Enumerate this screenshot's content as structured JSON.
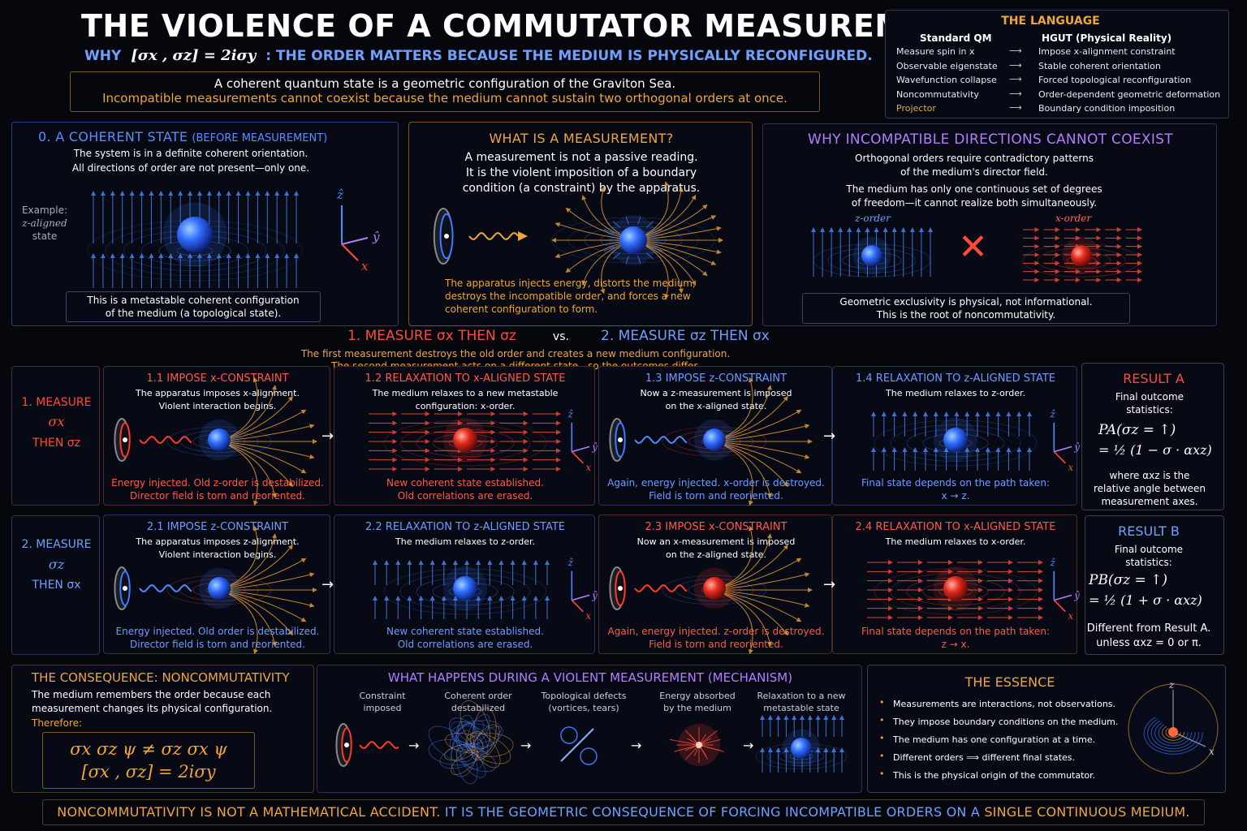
{
  "title": "THE VIOLENCE OF A COMMUTATOR MEASUREMENT",
  "subtitle": {
    "prefix": "WHY",
    "formula": "[σx , σz] = 2iσy",
    "text": ": THE ORDER MATTERS BECAUSE THE MEDIUM IS PHYSICALLY RECONFIGURED."
  },
  "intro": {
    "line1": "A coherent quantum state is a geometric configuration of the Graviton Sea.",
    "line2": "Incompatible measurements cannot coexist because the medium cannot sustain two orthogonal orders at once."
  },
  "language": {
    "title": "THE LANGUAGE",
    "col1": "Standard QM",
    "col2": "HGUT (Physical Reality)",
    "rows": [
      {
        "a": "Measure spin in x",
        "b": "Impose x-alignment constraint"
      },
      {
        "a": "Observable eigenstate",
        "b": "Stable coherent orientation"
      },
      {
        "a": "Wavefunction collapse",
        "b": "Forced topological reconfiguration"
      },
      {
        "a": "Noncommutativity",
        "b": "Order-dependent geometric deformation"
      },
      {
        "a": "Projector",
        "b": "Boundary condition imposition"
      }
    ],
    "arrow": "⟶"
  },
  "coherent": {
    "title": "0. A COHERENT STATE",
    "title_small": "(BEFORE MEASUREMENT)",
    "line1": "The system is in a definite coherent orientation.",
    "line2": "All directions of order are not present—only one.",
    "example1": "Example:",
    "example2": "z-aligned",
    "example3": "state",
    "note1": "This is a metastable coherent configuration",
    "note2": "of the medium (a topological state)."
  },
  "axes": {
    "z": "ẑ",
    "y": "ŷ",
    "x": "x"
  },
  "measurement": {
    "title": "WHAT IS A MEASUREMENT?",
    "line1": "A measurement is not a passive reading.",
    "line2": "It is the violent imposition of a boundary",
    "line3": "condition (a constraint) by the apparatus.",
    "note1": "The apparatus injects energy, distorts the medium,",
    "note2": "destroys the incompatible order, and forces a new",
    "note3": "coherent configuration to form."
  },
  "incompatible": {
    "title": "WHY INCOMPATIBLE DIRECTIONS CANNOT COEXIST",
    "line1": "Orthogonal orders require contradictory patterns",
    "line2": "of the medium's director field.",
    "line3": "The medium has only one continuous set of degrees",
    "line4": "of freedom—it cannot realize both simultaneously.",
    "zorder": "z-order",
    "xorder": "x-order",
    "cross": "✕",
    "note1": "Geometric exclusivity is physical, not informational.",
    "note2": "This is the root of noncommutativity."
  },
  "compare": {
    "left": "1. MEASURE σx THEN σz",
    "vs": "vs.",
    "right": "2. MEASURE σz THEN σx",
    "line1": "The first measurement destroys the old order and creates a new medium configuration.",
    "line2": "The second measurement acts on a different state—so the outcomes differ."
  },
  "row1": {
    "label1": "1. MEASURE",
    "label2": "σx",
    "label3": "THEN σz",
    "steps": [
      {
        "title": "1.1 IMPOSE x-CONSTRAINT",
        "l1": "The apparatus imposes x-alignment.",
        "l2": "Violent interaction begins.",
        "n1": "Energy injected. Old z-order is destabilized.",
        "n2": "Director field is torn and reoriented."
      },
      {
        "title": "1.2 RELAXATION TO x-ALIGNED STATE",
        "l1": "The medium relaxes to a new metastable",
        "l2": "configuration: x-order.",
        "n1": "New coherent state established.",
        "n2": "Old correlations are erased."
      },
      {
        "title": "1.3 IMPOSE z-CONSTRAINT",
        "l1": "Now a z-measurement is imposed",
        "l2": "on the x-aligned state.",
        "n1": "Again, energy injected. x-order is destroyed.",
        "n2": "Field is torn and reoriented."
      },
      {
        "title": "1.4 RELAXATION TO z-ALIGNED STATE",
        "l1": "The medium relaxes to z-order.",
        "l2": "",
        "n1": "Final state depends on the path taken:",
        "n2": "x → z."
      }
    ]
  },
  "row2": {
    "label1": "2. MEASURE",
    "label2": "σz",
    "label3": "THEN σx",
    "steps": [
      {
        "title": "2.1 IMPOSE z-CONSTRAINT",
        "l1": "The apparatus imposes z-alignment.",
        "l2": "Violent interaction begins.",
        "n1": "Energy injected. Old order is destabilized.",
        "n2": "Director field is torn and reoriented."
      },
      {
        "title": "2.2 RELAXATION TO z-ALIGNED STATE",
        "l1": "The medium relaxes to z-order.",
        "l2": "",
        "n1": "New coherent state established.",
        "n2": "Old correlations are erased."
      },
      {
        "title": "2.3 IMPOSE x-CONSTRAINT",
        "l1": "Now an x-measurement is imposed",
        "l2": "on the z-aligned state.",
        "n1": "Again, energy injected. z-order is destroyed.",
        "n2": "Field is torn and reoriented."
      },
      {
        "title": "2.4 RELAXATION TO x-ALIGNED STATE",
        "l1": "The medium relaxes to x-order.",
        "l2": "",
        "n1": "Final state depends on the path taken:",
        "n2": "z → x."
      }
    ]
  },
  "resultA": {
    "title": "RESULT A",
    "l1": "Final outcome",
    "l2": "statistics:",
    "f1": "PA(σz = ↑)",
    "f2": "= ½ (1 − σ · αxz)",
    "n1": "where αxz is the",
    "n2": "relative angle between",
    "n3": "measurement axes."
  },
  "resultB": {
    "title": "RESULT B",
    "l1": "Final outcome",
    "l2": "statistics:",
    "f1": "PB(σz = ↑)",
    "f2": "= ½ (1 + σ · αxz)",
    "n1": "Different from Result A.",
    "n2": "unless αxz = 0 or π."
  },
  "consequence": {
    "title": "THE CONSEQUENCE: NONCOMMUTATIVITY",
    "l1": "The medium remembers the order because each",
    "l2": "measurement changes its physical configuration.",
    "therefore": "Therefore:",
    "f1": "σx σz ψ ≠ σz σx ψ",
    "f2": "[σx , σz] = 2iσy"
  },
  "mechanism": {
    "title": "WHAT HAPPENS DURING A VIOLENT MEASUREMENT (MECHANISM)",
    "steps": [
      {
        "a": "Constraint",
        "b": "imposed"
      },
      {
        "a": "Coherent order",
        "b": "destabilized"
      },
      {
        "a": "Topological defects",
        "b": "(vortices, tears)"
      },
      {
        "a": "Energy absorbed",
        "b": "by the medium"
      },
      {
        "a": "Relaxation to a new",
        "b": "metastable state"
      }
    ]
  },
  "essence": {
    "title": "THE ESSENCE",
    "items": [
      "Measurements are interactions, not observations.",
      "They impose boundary conditions on the medium.",
      "The medium has one configuration at a time.",
      "Different orders ⟹ different final states.",
      "This is the physical origin of the commutator."
    ],
    "axis_z": "z",
    "axis_x": "x"
  },
  "footer": {
    "p1": "NONCOMMUTATIVITY IS NOT A MATHEMATICAL ACCIDENT.",
    "p2": " IT IS THE GEOMETRIC CONSEQUENCE OF FORCING INCOMPATIBLE ORDERS ON A ",
    "p3": "SINGLE CONTINUOUS MEDIUM."
  },
  "colors": {
    "gold": "#f0a53a",
    "blue": "#3f7bff",
    "red": "#ff3a2a",
    "purple": "#b57cff",
    "bg": "#05070d"
  }
}
